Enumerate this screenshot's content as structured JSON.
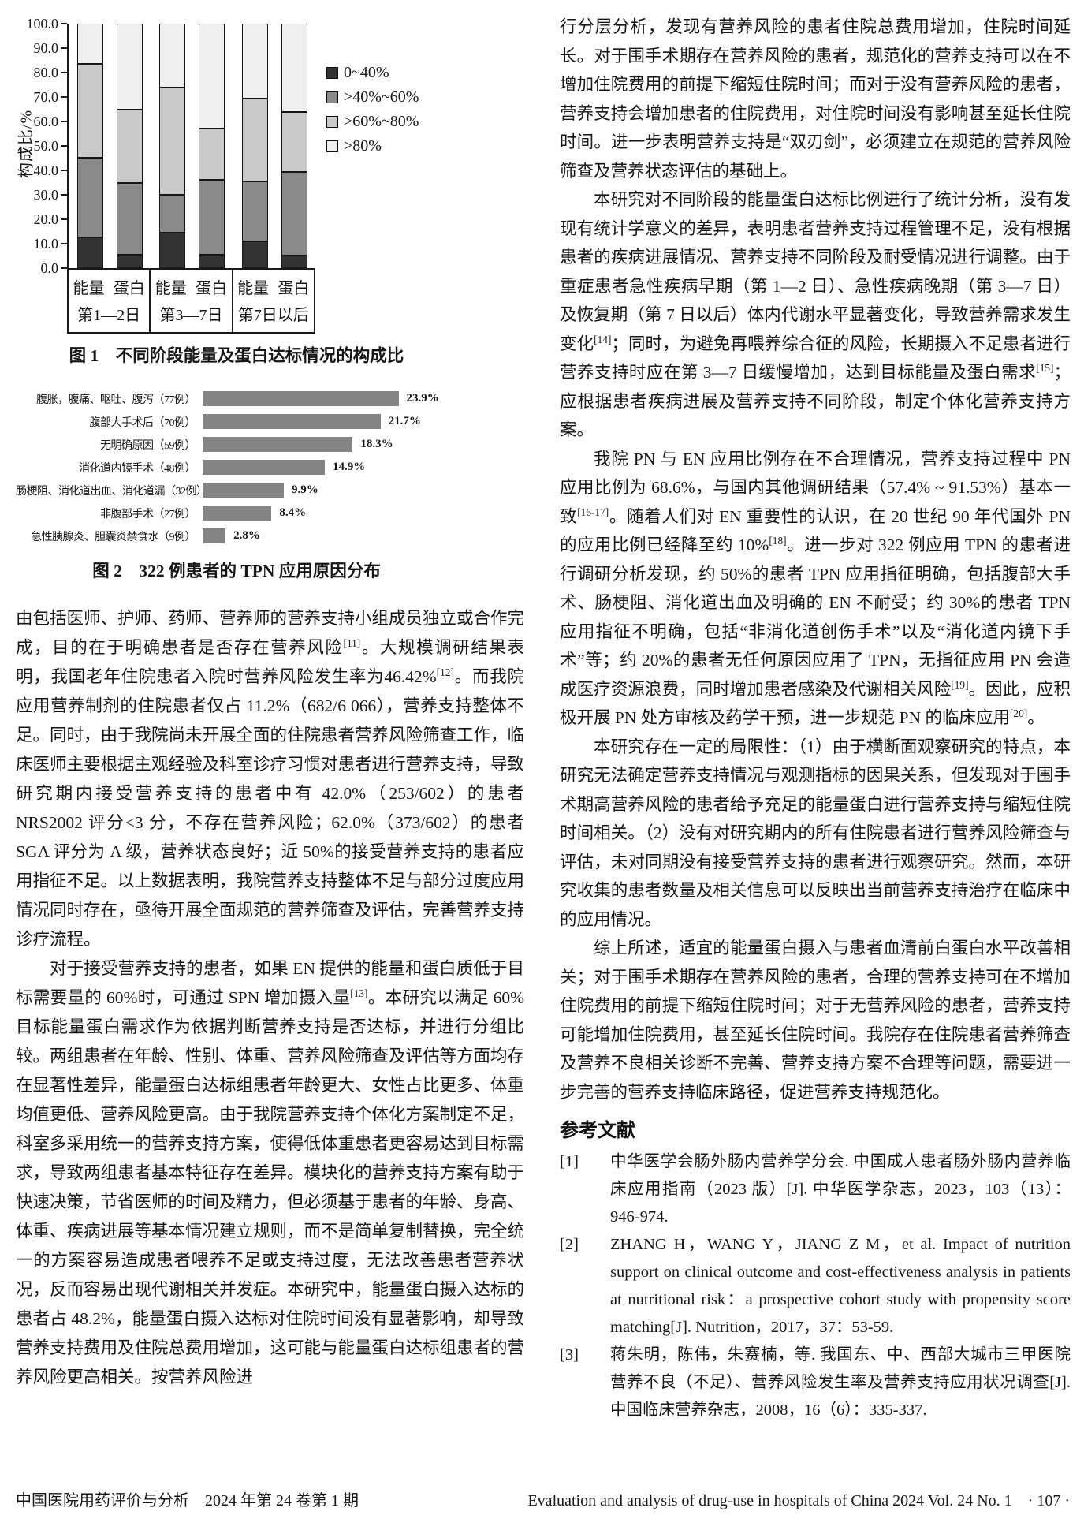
{
  "page": {
    "footer_left": "中国医院用药评价与分析　2024 年第 24 卷第 1 期",
    "footer_right": "Evaluation and analysis of drug-use in hospitals of China 2024 Vol. 24 No. 1　· 107 ·"
  },
  "chart_data": [
    {
      "type": "bar",
      "subtype": "stacked-vertical",
      "title": "图 1　不同阶段能量及蛋白达标情况的构成比",
      "xlabel": "",
      "ylabel": "构成比/%",
      "ylim": [
        0,
        100
      ],
      "grid": false,
      "legend_position": "right",
      "y_ticks": [
        "100.0",
        "90.0",
        "80.0",
        "70.0",
        "60.0",
        "50.0",
        "40.0",
        "30.0",
        "20.0",
        "10.0",
        "0.0"
      ],
      "groups": [
        "第1—2日",
        "第3—7日",
        "第7日以后"
      ],
      "bar_labels": [
        "能量",
        "蛋白",
        "能量",
        "蛋白",
        "能量",
        "蛋白"
      ],
      "series": [
        {
          "name": "0~40%",
          "color": "#333333",
          "values": [
            12.5,
            5.5,
            14.5,
            5.5,
            11.0,
            5.0
          ]
        },
        {
          "name": ">40%~60%",
          "color": "#8a8a8a",
          "values": [
            32.5,
            29.5,
            15.5,
            30.5,
            24.5,
            34.5
          ]
        },
        {
          "name": ">60%~80%",
          "color": "#c9c9c9",
          "values": [
            38.5,
            30.0,
            44.0,
            21.0,
            34.0,
            24.5
          ]
        },
        {
          "name": ">80%",
          "color": "#efefef",
          "values": [
            16.5,
            35.0,
            26.0,
            43.0,
            30.5,
            36.0
          ]
        }
      ]
    },
    {
      "type": "bar",
      "subtype": "horizontal",
      "title": "图 2　322 例患者的 TPN 应用原因分布",
      "bar_color": "#848484",
      "xlim": [
        0,
        26
      ],
      "categories": [
        "腹胀，腹痛、呕吐、腹泻（77例）",
        "腹部大手术后（70例）",
        "无明确原因（59例）",
        "消化道内镜手术（48例）",
        "肠梗阻、消化道出血、消化道漏（32例）",
        "非腹部手术（27例）",
        "急性胰腺炎、胆囊炎禁食水（9例）"
      ],
      "values": [
        23.9,
        21.7,
        18.3,
        14.9,
        9.9,
        8.4,
        2.8
      ],
      "value_labels": [
        "23.9%",
        "21.7%",
        "18.3%",
        "14.9%",
        "9.9%",
        "8.4%",
        "2.8%"
      ]
    }
  ],
  "left_column": {
    "paragraphs": [
      {
        "indent": false,
        "text": "由包括医师、护师、药师、营养师的营养支持小组成员独立或合作完成，目的在于明确患者是否存在营养风险[11]。大规模调研结果表明，我国老年住院患者入院时营养风险发生率为46.42%[12]。而我院应用营养制剂的住院患者仅占 11.2%（682/6 066），营养支持整体不足。同时，由于我院尚未开展全面的住院患者营养风险筛查工作，临床医师主要根据主观经验及科室诊疗习惯对患者进行营养支持，导致研究期内接受营养支持的患者中有 42.0%（253/602）的患者 NRS2002 评分<3 分，不存在营养风险；62.0%（373/602）的患者 SGA 评分为 A 级，营养状态良好；近 50%的接受营养支持的患者应用指征不足。以上数据表明，我院营养支持整体不足与部分过度应用情况同时存在，亟待开展全面规范的营养筛查及评估，完善营养支持诊疗流程。"
      },
      {
        "indent": true,
        "text": "对于接受营养支持的患者，如果 EN 提供的能量和蛋白质低于目标需要量的 60%时，可通过 SPN 增加摄入量[13]。本研究以满足 60%目标能量蛋白需求作为依据判断营养支持是否达标，并进行分组比较。两组患者在年龄、性别、体重、营养风险筛查及评估等方面均存在显著性差异，能量蛋白达标组患者年龄更大、女性占比更多、体重均值更低、营养风险更高。由于我院营养支持个体化方案制定不足，科室多采用统一的营养支持方案，使得低体重患者更容易达到目标需求，导致两组患者基本特征存在差异。模块化的营养支持方案有助于快速决策，节省医师的时间及精力，但必须基于患者的年龄、身高、体重、疾病进展等基本情况建立规则，而不是简单复制替换，完全统一的方案容易造成患者喂养不足或支持过度，无法改善患者营养状况，反而容易出现代谢相关并发症。本研究中，能量蛋白摄入达标的患者占 48.2%，能量蛋白摄入达标对住院时间没有显著影响，却导致营养支持费用及住院总费用增加，这可能与能量蛋白达标组患者的营养风险更高相关。按营养风险进"
      }
    ]
  },
  "right_column": {
    "paragraphs": [
      {
        "indent": false,
        "text": "行分层分析，发现有营养风险的患者住院总费用增加，住院时间延长。对于围手术期存在营养风险的患者，规范化的营养支持可以在不增加住院费用的前提下缩短住院时间；而对于没有营养风险的患者，营养支持会增加患者的住院费用，对住院时间没有影响甚至延长住院时间。进一步表明营养支持是“双刃剑”，必须建立在规范的营养风险筛查及营养状态评估的基础上。"
      },
      {
        "indent": true,
        "text": "本研究对不同阶段的能量蛋白达标比例进行了统计分析，没有发现有统计学意义的差异，表明患者营养支持过程管理不足，没有根据患者的疾病进展情况、营养支持不同阶段及耐受情况进行调整。由于重症患者急性疾病早期（第 1—2 日）、急性疾病晚期（第 3—7 日）及恢复期（第 7 日以后）体内代谢水平显著变化，导致营养需求发生变化[14]；同时，为避免再喂养综合征的风险，长期摄入不足患者进行营养支持时应在第 3—7 日缓慢增加，达到目标能量及蛋白需求[15]；应根据患者疾病进展及营养支持不同阶段，制定个体化营养支持方案。"
      },
      {
        "indent": true,
        "text": "我院 PN 与 EN 应用比例存在不合理情况，营养支持过程中 PN 应用比例为 68.6%，与国内其他调研结果（57.4% ~ 91.53%）基本一致[16-17]。随着人们对 EN 重要性的认识，在 20 世纪 90 年代国外 PN 的应用比例已经降至约 10%[18]。进一步对 322 例应用 TPN 的患者进行调研分析发现，约 50%的患者 TPN 应用指征明确，包括腹部大手术、肠梗阻、消化道出血及明确的 EN 不耐受；约 30%的患者 TPN 应用指征不明确，包括“非消化道创伤手术”以及“消化道内镜下手术”等；约 20%的患者无任何原因应用了 TPN，无指征应用 PN 会造成医疗资源浪费，同时增加患者感染及代谢相关风险[19]。因此，应积极开展 PN 处方审核及药学干预，进一步规范 PN 的临床应用[20]。"
      },
      {
        "indent": true,
        "text": "本研究存在一定的局限性：（1）由于横断面观察研究的特点，本研究无法确定营养支持情况与观测指标的因果关系，但发现对于围手术期高营养风险的患者给予充足的能量蛋白进行营养支持与缩短住院时间相关。（2）没有对研究期内的所有住院患者进行营养风险筛查与评估，未对同期没有接受营养支持的患者进行观察研究。然而，本研究收集的患者数量及相关信息可以反映出当前营养支持治疗在临床中的应用情况。"
      },
      {
        "indent": true,
        "text": "综上所述，适宜的能量蛋白摄入与患者血清前白蛋白水平改善相关；对于围手术期存在营养风险的患者，合理的营养支持可在不增加住院费用的前提下缩短住院时间；对于无营养风险的患者，营养支持可能增加住院费用，甚至延长住院时间。我院存在住院患者营养筛查及营养不良相关诊断不完善、营养支持方案不合理等问题，需要进一步完善的营养支持临床路径，促进营养支持规范化。"
      }
    ],
    "references_heading": "参考文献",
    "references": [
      {
        "label": "[1]",
        "text": "中华医学会肠外肠内营养学分会. 中国成人患者肠外肠内营养临床应用指南（2023 版）[J]. 中华医学杂志，2023，103（13）：946-974."
      },
      {
        "label": "[2]",
        "text": "ZHANG H，WANG Y，JIANG Z M，et al. Impact of nutrition support on clinical outcome and cost-effectiveness analysis in patients at nutritional risk：a prospective cohort study with propensity score matching[J]. Nutrition，2017，37：53-59."
      },
      {
        "label": "[3]",
        "text": "蒋朱明，陈伟，朱赛楠，等. 我国东、中、西部大城市三甲医院营养不良（不足）、营养风险发生率及营养支持应用状况调查[J]. 中国临床营养杂志，2008，16（6）：335-337."
      }
    ]
  }
}
